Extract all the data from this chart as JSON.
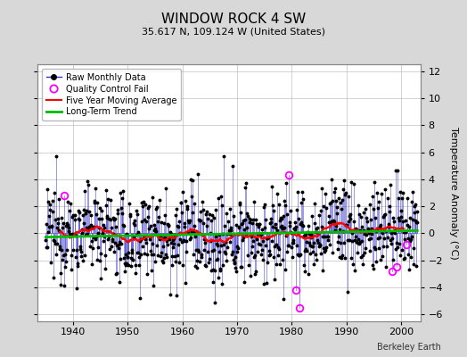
{
  "title": "WINDOW ROCK 4 SW",
  "subtitle": "35.617 N, 109.124 W (United States)",
  "ylabel": "Temperature Anomaly (°C)",
  "credit": "Berkeley Earth",
  "xlim": [
    1933.5,
    2003.5
  ],
  "ylim": [
    -6.5,
    12.5
  ],
  "yticks": [
    -6,
    -4,
    -2,
    0,
    2,
    4,
    6,
    8,
    10,
    12
  ],
  "xticks": [
    1940,
    1950,
    1960,
    1970,
    1980,
    1990,
    2000
  ],
  "bg_color": "#d8d8d8",
  "plot_bg_color": "#ffffff",
  "raw_line_color": "#3333cc",
  "raw_marker_color": "#000000",
  "qc_fail_color": "#ff00ff",
  "moving_avg_color": "#ff0000",
  "trend_color": "#00bb00",
  "seed": 12345
}
